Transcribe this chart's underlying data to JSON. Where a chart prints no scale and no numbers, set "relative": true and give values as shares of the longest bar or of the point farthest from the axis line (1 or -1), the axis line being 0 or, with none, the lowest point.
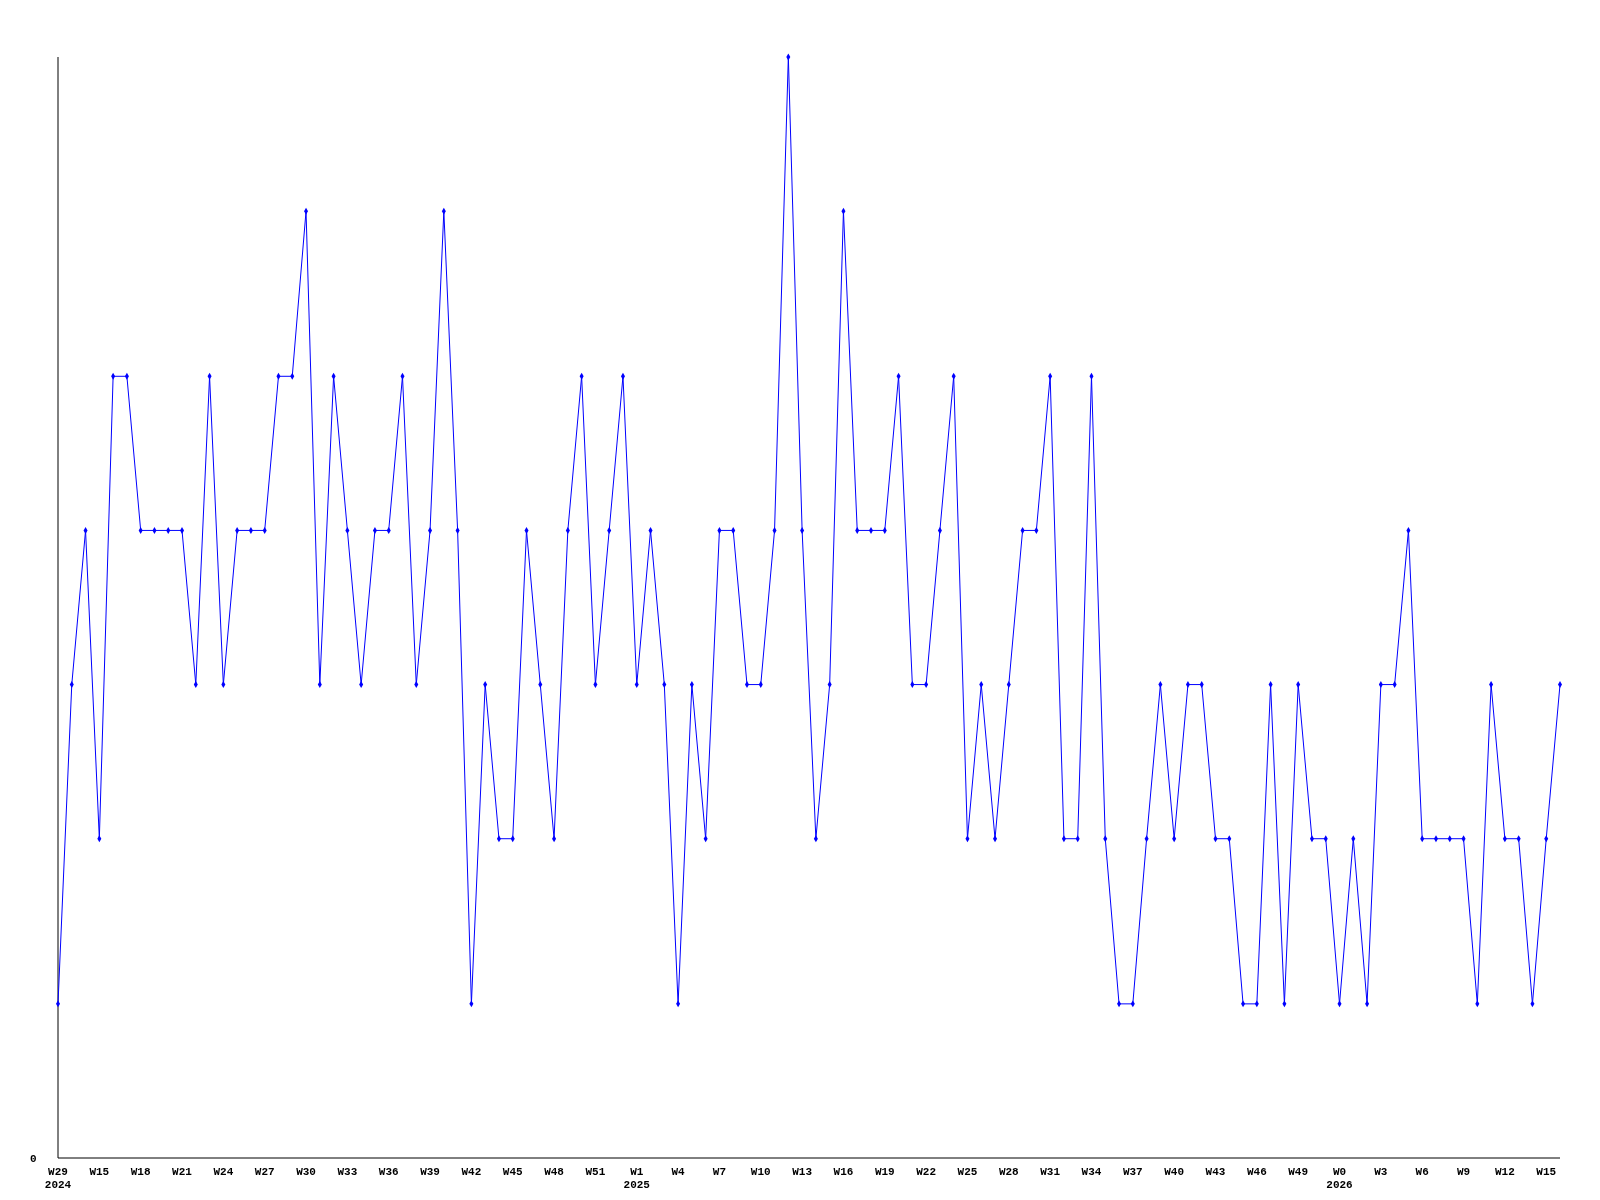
{
  "chart_data": {
    "type": "line",
    "relative": true,
    "marker": "diamond",
    "line_style": "solid",
    "annotations": [
      "0"
    ],
    "categories": [
      "W29\n2024",
      null,
      null,
      "W15",
      null,
      null,
      "W18",
      null,
      null,
      "W21",
      null,
      null,
      "W24",
      null,
      null,
      "W27",
      null,
      null,
      "W30",
      null,
      null,
      "W33",
      null,
      null,
      "W36",
      null,
      null,
      "W39",
      null,
      null,
      "W42",
      null,
      null,
      "W45",
      null,
      null,
      "W48",
      null,
      null,
      "W51",
      null,
      null,
      "W1\n2025",
      null,
      null,
      "W4",
      null,
      null,
      "W7",
      null,
      null,
      "W10",
      null,
      null,
      "W13",
      null,
      null,
      "W16",
      null,
      null,
      "W19",
      null,
      null,
      "W22",
      null,
      null,
      "W25",
      null,
      null,
      "W28",
      null,
      null,
      "W31",
      null,
      null,
      "W34",
      null,
      null,
      "W37",
      null,
      null,
      "W40",
      null,
      null,
      "W43",
      null,
      null,
      "W46",
      null,
      null,
      "W49",
      null,
      null,
      "W0\n2026",
      null,
      null,
      "W3",
      null,
      null,
      "W6",
      null,
      null,
      "W9",
      null,
      null,
      "W12",
      null,
      null,
      "W15",
      null
    ],
    "series": [
      {
        "color": "#0000ff",
        "values": [
          0.14,
          0.43,
          0.57,
          0.29,
          0.71,
          0.71,
          0.57,
          0.57,
          0.57,
          0.57,
          0.43,
          0.71,
          0.43,
          0.57,
          0.57,
          0.57,
          0.71,
          0.71,
          0.86,
          0.43,
          0.71,
          0.57,
          0.43,
          0.57,
          0.57,
          0.71,
          0.43,
          0.57,
          0.86,
          0.57,
          0.14,
          0.43,
          0.29,
          0.29,
          0.57,
          0.43,
          0.29,
          0.57,
          0.71,
          0.43,
          0.57,
          0.71,
          0.43,
          0.57,
          0.43,
          0.14,
          0.43,
          0.29,
          0.57,
          0.57,
          0.43,
          0.43,
          0.57,
          1,
          0.57,
          0.29,
          0.43,
          0.86,
          0.57,
          0.57,
          0.57,
          0.71,
          0.43,
          0.43,
          0.57,
          0.71,
          0.29,
          0.43,
          0.29,
          0.43,
          0.57,
          0.57,
          0.71,
          0.29,
          0.29,
          0.71,
          0.29,
          0.14,
          0.14,
          0.29,
          0.43,
          0.29,
          0.43,
          0.43,
          0.29,
          0.29,
          0.14,
          0.14,
          0.43,
          0.14,
          0.43,
          0.29,
          0.29,
          0.14,
          0.29,
          0.14,
          0.43,
          0.43,
          0.57,
          0.29,
          0.29,
          0.29,
          0.29,
          0.14,
          0.43,
          0.29,
          0.29,
          0.14,
          0.29,
          0.43
        ]
      }
    ]
  }
}
